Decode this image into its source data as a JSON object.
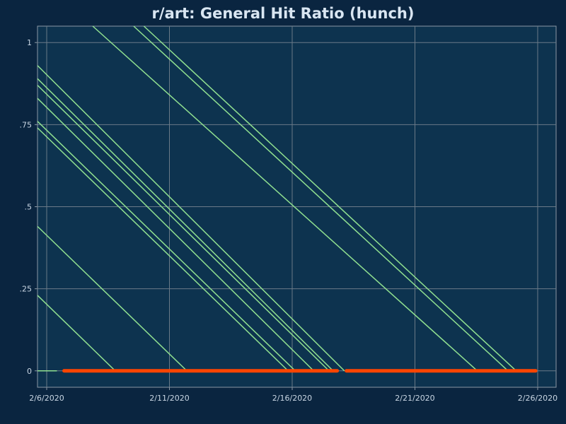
{
  "chart_data": {
    "type": "line",
    "title": "r/art: General Hit Ratio (hunch)",
    "xlabel": "",
    "ylabel": "",
    "x_ticks": [
      "2/6/2020",
      "2/11/2020",
      "2/16/2020",
      "2/21/2020",
      "2/26/2020"
    ],
    "y_ticks": [
      "0",
      ".25",
      ".5",
      ".75",
      "1"
    ],
    "xlim": [
      "2020-02-05T15:00",
      "2020-02-26T18:00"
    ],
    "ylim": [
      -0.05,
      1.05
    ],
    "grid": true,
    "legend": "none",
    "colors": {
      "background": "#0a2540",
      "plot_bg": "#0d334f",
      "grid": "#6b7a88",
      "decay_line": "#90e090",
      "baseline": "#ff4500"
    },
    "series": [
      {
        "x": [
          "2020-02-05T14:00",
          "2020-02-08T19:00"
        ],
        "y": [
          0.23,
          0
        ]
      },
      {
        "x": [
          "2020-02-05T14:00",
          "2020-02-11T17:00"
        ],
        "y": [
          0.44,
          0
        ]
      },
      {
        "x": [
          "2020-02-05T14:00",
          "2020-02-15T20:00"
        ],
        "y": [
          0.74,
          0
        ]
      },
      {
        "x": [
          "2020-02-05T14:00",
          "2020-02-16T03:00"
        ],
        "y": [
          0.76,
          0
        ]
      },
      {
        "x": [
          "2020-02-05T14:00",
          "2020-02-16T21:00"
        ],
        "y": [
          0.83,
          0
        ]
      },
      {
        "x": [
          "2020-02-05T14:00",
          "2020-02-17T12:00"
        ],
        "y": [
          0.87,
          0
        ]
      },
      {
        "x": [
          "2020-02-05T14:00",
          "2020-02-17T16:00"
        ],
        "y": [
          0.89,
          0
        ]
      },
      {
        "x": [
          "2020-02-05T14:00",
          "2020-02-18T03:00"
        ],
        "y": [
          0.93,
          0
        ]
      },
      {
        "x": [
          "2020-02-07T21:00",
          "2020-02-23T13:00"
        ],
        "y": [
          1.05,
          0
        ]
      },
      {
        "x": [
          "2020-02-09T13:00",
          "2020-02-24T19:00"
        ],
        "y": [
          1.05,
          0
        ]
      },
      {
        "x": [
          "2020-02-09T23:00",
          "2020-02-25T03:00"
        ],
        "y": [
          1.05,
          0
        ]
      },
      {
        "x": [
          "2020-02-05T14:00",
          "2020-02-06T10:00"
        ],
        "y": [
          0,
          0
        ]
      }
    ],
    "baseline": [
      {
        "x": [
          "2020-02-06T17:00",
          "2020-02-17T20:00"
        ],
        "y": [
          0,
          0
        ]
      },
      {
        "x": [
          "2020-02-18T05:00",
          "2020-02-25T22:00"
        ],
        "y": [
          0,
          0
        ]
      }
    ]
  }
}
